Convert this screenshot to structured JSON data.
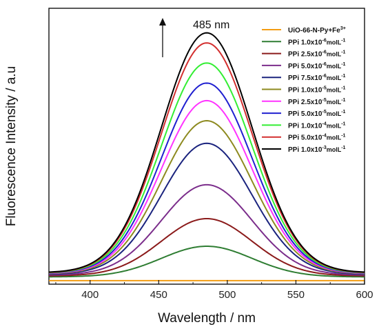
{
  "chart_data": {
    "type": "line",
    "xlabel": "Wavelength / nm",
    "ylabel": "Fluorescence Intensity / a.u",
    "xlim": [
      370,
      600
    ],
    "ylim": [
      0,
      100
    ],
    "xticks": [
      400,
      450,
      500,
      550,
      600
    ],
    "y_tick_labels_shown": false,
    "grid": false,
    "legend_position": "top-right",
    "annotation": {
      "text": "485 nm",
      "x": 485,
      "arrow": "up"
    },
    "peak_center": 485,
    "peak_sigma": 33,
    "x_samples": [
      370,
      375,
      380,
      385,
      390,
      395,
      400,
      405,
      410,
      415,
      420,
      425,
      430,
      435,
      440,
      445,
      450,
      455,
      460,
      465,
      470,
      475,
      480,
      485,
      490,
      495,
      500,
      505,
      510,
      515,
      520,
      525,
      530,
      535,
      540,
      545,
      550,
      555,
      560,
      565,
      570,
      575,
      580,
      585,
      590,
      595,
      600
    ],
    "series": [
      {
        "name": "UiO-66-N-Py+Fe",
        "sup": "3+",
        "color": "#f39c12",
        "baseline": 0.3,
        "peak": 0.3
      },
      {
        "name": "PPi 1.0x10",
        "sup": "-6",
        "unit": "molL",
        "unit_sup": "-1",
        "color": "#2e7d32",
        "baseline": 1.8,
        "peak": 14.0
      },
      {
        "name": "PPi 2.5x10",
        "sup": "-6",
        "unit": "molL",
        "unit_sup": "-1",
        "color": "#8b1a1a",
        "baseline": 2.2,
        "peak": 25.0
      },
      {
        "name": "PPi 5.0x10",
        "sup": "-6",
        "unit": "molL",
        "unit_sup": "-1",
        "color": "#7b2d8b",
        "baseline": 2.5,
        "peak": 38.5
      },
      {
        "name": "PPi 7.5x10",
        "sup": "-6",
        "unit": "molL",
        "unit_sup": "-1",
        "color": "#1a237e",
        "baseline": 2.8,
        "peak": 55.0
      },
      {
        "name": "PPi 1.0x10",
        "sup": "-5",
        "unit": "molL",
        "unit_sup": "-1",
        "color": "#8d8a1f",
        "baseline": 3.0,
        "peak": 64.0
      },
      {
        "name": "PPi 2.5x10",
        "sup": "-5",
        "unit": "molL",
        "unit_sup": "-1",
        "color": "#ff33ff",
        "baseline": 3.1,
        "peak": 72.0
      },
      {
        "name": "PPi 5.0x10",
        "sup": "-5",
        "unit": "molL",
        "unit_sup": "-1",
        "color": "#1f1fd0",
        "baseline": 3.2,
        "peak": 79.0
      },
      {
        "name": "PPi 1.0x10",
        "sup": "-4",
        "unit": "molL",
        "unit_sup": "-1",
        "color": "#33ee33",
        "baseline": 3.3,
        "peak": 87.0
      },
      {
        "name": "PPi 5.0x10",
        "sup": "-4",
        "unit": "molL",
        "unit_sup": "-1",
        "color": "#d32f2f",
        "baseline": 3.4,
        "peak": 95.0
      },
      {
        "name": "PPi 1.0x10",
        "sup": "-3",
        "unit": "molL",
        "unit_sup": "-1",
        "color": "#000000",
        "baseline": 3.5,
        "peak": 99.0
      }
    ]
  }
}
